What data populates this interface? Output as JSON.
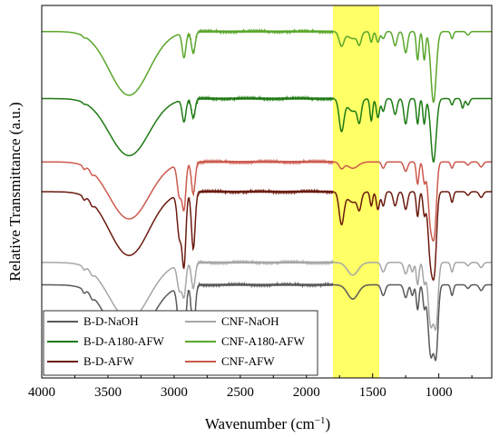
{
  "chart_data": {
    "type": "line",
    "title": "",
    "xlabel_main": "Wavenumber (cm",
    "xlabel_sup": "−1",
    "xlabel_end": ")",
    "ylabel": "Relative Transmittance (a.u.)",
    "xlim": [
      4000,
      600
    ],
    "x_reversed": true,
    "x_ticks": [
      4000,
      3500,
      3000,
      2500,
      2000,
      1500,
      1000
    ],
    "y_ticks_shown": false,
    "grid": false,
    "legend_position": "bottom-left",
    "highlight_band": {
      "x_from": 1800,
      "x_to": 1450,
      "color": "#ffff66"
    },
    "series": [
      {
        "name": "B-D-NaOH",
        "color": "#595959",
        "offset": 0.25,
        "depth": 0.19,
        "bands": [
          [
            3680,
            0.05,
            10
          ],
          [
            3620,
            0.05,
            12
          ],
          [
            3340,
            0.9,
            150
          ],
          [
            2960,
            0.55,
            16
          ],
          [
            2925,
            0.85,
            14
          ],
          [
            2855,
            0.7,
            14
          ],
          [
            1650,
            0.2,
            40
          ],
          [
            1420,
            0.15,
            15
          ],
          [
            1250,
            0.18,
            14
          ],
          [
            1200,
            0.15,
            10
          ],
          [
            1160,
            0.35,
            10
          ],
          [
            1110,
            0.3,
            10
          ],
          [
            1060,
            1.0,
            20
          ],
          [
            1020,
            0.9,
            15
          ],
          [
            900,
            0.15,
            10
          ],
          [
            780,
            0.05,
            12
          ],
          [
            680,
            0.08,
            14
          ]
        ]
      },
      {
        "name": "CNF-NaOH",
        "color": "#a6a6a6",
        "offset": 0.31,
        "depth": 0.17,
        "bands": [
          [
            3680,
            0.05,
            10
          ],
          [
            3620,
            0.05,
            12
          ],
          [
            3340,
            0.9,
            150
          ],
          [
            2960,
            0.4,
            16
          ],
          [
            2925,
            0.5,
            14
          ],
          [
            2855,
            0.4,
            14
          ],
          [
            1650,
            0.2,
            40
          ],
          [
            1420,
            0.15,
            15
          ],
          [
            1250,
            0.18,
            14
          ],
          [
            1200,
            0.15,
            10
          ],
          [
            1160,
            0.35,
            10
          ],
          [
            1110,
            0.3,
            10
          ],
          [
            1060,
            1.0,
            20
          ],
          [
            1020,
            0.9,
            15
          ],
          [
            900,
            0.15,
            10
          ],
          [
            780,
            0.05,
            12
          ],
          [
            680,
            0.08,
            14
          ]
        ]
      },
      {
        "name": "B-D-A180-AFW",
        "color": "#1e7a14",
        "offset": 0.75,
        "depth": 0.17,
        "bands": [
          [
            3680,
            0.02,
            10
          ],
          [
            3340,
            0.9,
            150
          ],
          [
            2925,
            0.35,
            14
          ],
          [
            2855,
            0.3,
            14
          ],
          [
            1735,
            0.5,
            18
          ],
          [
            1650,
            0.2,
            40
          ],
          [
            1600,
            0.3,
            14
          ],
          [
            1510,
            0.35,
            10
          ],
          [
            1460,
            0.3,
            12
          ],
          [
            1420,
            0.2,
            12
          ],
          [
            1330,
            0.25,
            14
          ],
          [
            1250,
            0.4,
            14
          ],
          [
            1160,
            0.4,
            10
          ],
          [
            1110,
            0.4,
            10
          ],
          [
            1040,
            1.0,
            20
          ],
          [
            900,
            0.1,
            10
          ],
          [
            820,
            0.15,
            10
          ],
          [
            780,
            0.1,
            12
          ]
        ]
      },
      {
        "name": "CNF-A180-AFW",
        "color": "#5aa62b",
        "offset": 0.93,
        "depth": 0.19,
        "bands": [
          [
            3680,
            0.02,
            10
          ],
          [
            3340,
            0.9,
            150
          ],
          [
            2925,
            0.35,
            14
          ],
          [
            2855,
            0.3,
            14
          ],
          [
            1735,
            0.2,
            18
          ],
          [
            1650,
            0.1,
            40
          ],
          [
            1600,
            0.15,
            14
          ],
          [
            1510,
            0.15,
            10
          ],
          [
            1460,
            0.15,
            12
          ],
          [
            1420,
            0.1,
            12
          ],
          [
            1330,
            0.2,
            14
          ],
          [
            1250,
            0.3,
            14
          ],
          [
            1160,
            0.4,
            10
          ],
          [
            1110,
            0.4,
            10
          ],
          [
            1040,
            1.0,
            20
          ],
          [
            900,
            0.1,
            10
          ],
          [
            780,
            0.05,
            12
          ]
        ]
      },
      {
        "name": "B-D-AFW",
        "color": "#6b1a0e",
        "offset": 0.5,
        "depth": 0.19,
        "bands": [
          [
            3680,
            0.05,
            10
          ],
          [
            3620,
            0.05,
            12
          ],
          [
            3340,
            0.9,
            150
          ],
          [
            2960,
            0.6,
            16
          ],
          [
            2925,
            1.0,
            14
          ],
          [
            2855,
            0.8,
            14
          ],
          [
            1735,
            0.45,
            18
          ],
          [
            1650,
            0.15,
            40
          ],
          [
            1600,
            0.2,
            14
          ],
          [
            1510,
            0.2,
            10
          ],
          [
            1460,
            0.25,
            12
          ],
          [
            1420,
            0.2,
            12
          ],
          [
            1330,
            0.2,
            14
          ],
          [
            1250,
            0.25,
            14
          ],
          [
            1160,
            0.35,
            10
          ],
          [
            1110,
            0.3,
            10
          ],
          [
            1060,
            1.0,
            20
          ],
          [
            1030,
            0.8,
            15
          ],
          [
            900,
            0.15,
            10
          ],
          [
            780,
            0.05,
            12
          ],
          [
            680,
            0.08,
            14
          ]
        ]
      },
      {
        "name": "CNF-AFW",
        "color": "#cc5a4d",
        "offset": 0.58,
        "depth": 0.17,
        "bands": [
          [
            3680,
            0.05,
            10
          ],
          [
            3620,
            0.05,
            12
          ],
          [
            3340,
            0.9,
            150
          ],
          [
            2960,
            0.5,
            16
          ],
          [
            2925,
            0.7,
            14
          ],
          [
            2855,
            0.5,
            14
          ],
          [
            1735,
            0.1,
            18
          ],
          [
            1650,
            0.1,
            40
          ],
          [
            1420,
            0.1,
            12
          ],
          [
            1250,
            0.15,
            14
          ],
          [
            1160,
            0.35,
            10
          ],
          [
            1110,
            0.3,
            10
          ],
          [
            1060,
            1.0,
            20
          ],
          [
            1030,
            0.8,
            15
          ],
          [
            900,
            0.1,
            10
          ],
          [
            780,
            0.05,
            12
          ],
          [
            680,
            0.08,
            14
          ]
        ]
      }
    ]
  }
}
